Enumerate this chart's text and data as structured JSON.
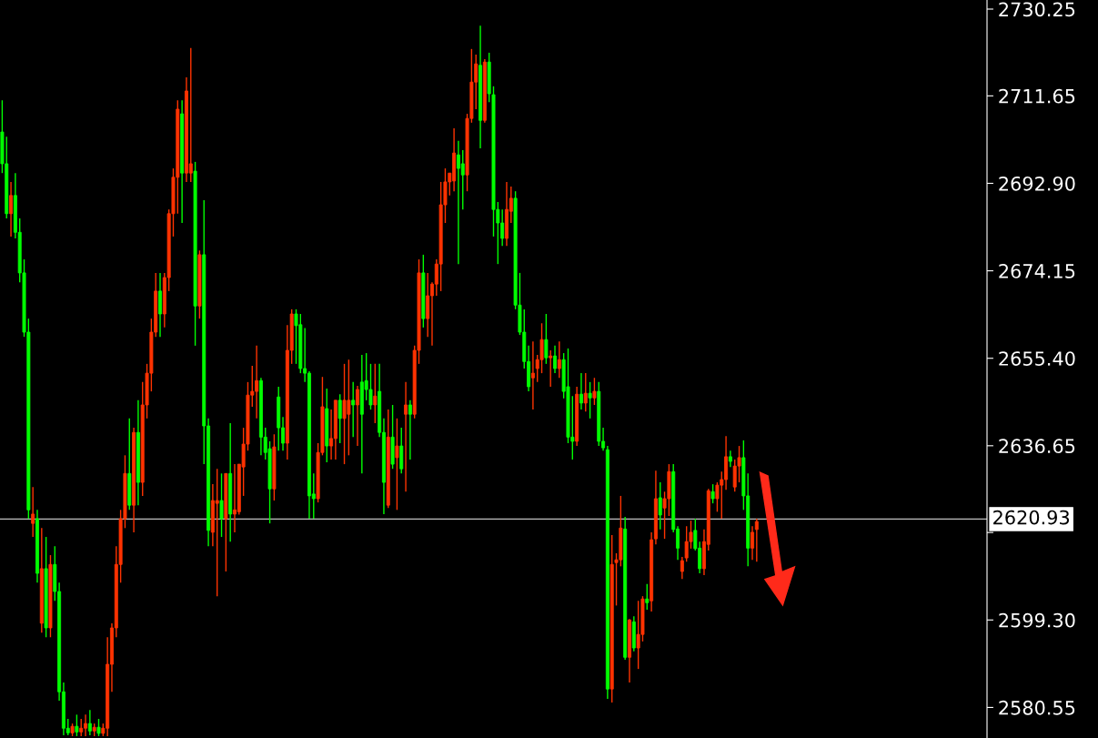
{
  "chart_data": {
    "type": "candlestick",
    "categories": [
      null,
      null,
      null,
      null,
      null,
      null,
      null,
      null,
      null,
      null,
      null,
      null,
      null,
      null,
      null,
      null,
      null,
      null,
      null,
      null,
      null,
      null,
      null,
      null,
      null,
      null,
      null,
      null,
      null,
      null,
      null,
      null,
      null,
      null,
      null,
      null,
      null,
      null,
      null,
      null,
      null,
      null,
      null,
      null,
      null,
      null,
      null,
      null,
      null,
      null,
      null,
      null,
      null,
      null,
      null,
      null,
      null,
      null,
      null,
      null,
      null,
      null,
      null,
      null,
      null,
      null,
      null,
      null,
      null,
      null,
      null,
      null,
      null,
      null,
      null,
      null,
      null,
      null,
      null,
      null,
      null,
      null,
      null,
      null,
      null,
      null,
      null,
      null,
      null,
      null,
      null,
      null,
      null,
      null,
      null,
      null,
      null,
      null,
      null,
      null,
      null,
      null,
      null,
      null,
      null,
      null,
      null,
      null,
      null,
      null,
      null,
      null,
      null,
      null,
      null,
      null,
      null,
      null,
      null,
      null,
      null,
      null,
      null,
      null,
      null,
      null,
      null,
      null,
      null,
      null,
      null,
      null,
      null,
      null,
      null,
      null,
      null,
      null,
      null,
      null,
      null,
      null,
      null,
      null,
      null,
      null,
      null,
      null,
      null,
      null,
      null,
      null,
      null,
      null,
      null,
      null,
      null,
      null,
      null,
      null,
      null,
      null,
      null,
      null,
      null,
      null,
      null,
      null,
      null,
      null,
      null,
      null,
      null,
      null,
      null,
      null,
      null,
      null,
      null,
      null,
      null,
      null,
      null,
      null,
      null,
      null,
      null,
      null,
      null,
      null,
      null,
      null,
      null,
      null,
      null,
      null,
      null,
      null,
      null,
      null,
      null,
      null,
      null,
      null,
      null,
      null,
      null,
      null,
      null,
      null,
      null,
      null,
      null,
      null,
      null,
      null,
      null,
      null,
      null,
      null,
      null,
      null,
      null,
      null,
      null
    ],
    "ohlc": [
      [
        2703.9,
        2710.7,
        2695.1,
        2697.1
      ],
      [
        2697.1,
        2702.9,
        2685.4,
        2686.4
      ],
      [
        2686.4,
        2693.2,
        2681.5,
        2690.3
      ],
      [
        2690.3,
        2695.1,
        2681.1,
        2682.4
      ],
      [
        2682.4,
        2685.4,
        2671.7,
        2673.7
      ],
      [
        2673.7,
        2676.6,
        2660.0,
        2661.0
      ],
      [
        2661.0,
        2663.9,
        2621.0,
        2622.9
      ],
      [
        2620.0,
        2627.8,
        2617.1,
        2622.0
      ],
      [
        2621.0,
        2622.9,
        2607.3,
        2609.3
      ],
      [
        2598.6,
        2619.0,
        2596.6,
        2610.3
      ],
      [
        2610.3,
        2617.1,
        2595.6,
        2597.6
      ],
      [
        2597.6,
        2613.2,
        2595.6,
        2611.2
      ],
      [
        2611.2,
        2615.1,
        2603.4,
        2605.4
      ],
      [
        2605.4,
        2607.3,
        2582.0,
        2583.9
      ],
      [
        2583.9,
        2585.9,
        2574.6,
        2576.1
      ],
      [
        2576.1,
        2578.1,
        2574.6,
        2575.1
      ],
      [
        2575.1,
        2577.1,
        2574.4,
        2576.5
      ],
      [
        2576.5,
        2579.0,
        2574.4,
        2575.3
      ],
      [
        2575.3,
        2578.1,
        2574.4,
        2576.1
      ],
      [
        2576.1,
        2579.0,
        2574.4,
        2577.1
      ],
      [
        2577.1,
        2580.0,
        2574.6,
        2575.5
      ],
      [
        2575.5,
        2577.1,
        2574.4,
        2576.3
      ],
      [
        2576.3,
        2578.1,
        2574.4,
        2575.0
      ],
      [
        2575.0,
        2577.1,
        2574.4,
        2576.1
      ],
      [
        2576.1,
        2595.6,
        2574.4,
        2589.8
      ],
      [
        2589.8,
        2598.6,
        2583.9,
        2597.6
      ],
      [
        2597.6,
        2615.1,
        2595.6,
        2611.2
      ],
      [
        2611.2,
        2622.9,
        2607.3,
        2621.0
      ],
      [
        2621.0,
        2634.6,
        2619.0,
        2630.7
      ],
      [
        2630.7,
        2642.5,
        2622.9,
        2623.9
      ],
      [
        2623.9,
        2640.5,
        2618.1,
        2639.5
      ],
      [
        2639.5,
        2646.4,
        2623.9,
        2628.8
      ],
      [
        2628.8,
        2650.3,
        2625.9,
        2645.4
      ],
      [
        2645.4,
        2654.2,
        2642.5,
        2652.2
      ],
      [
        2652.2,
        2663.9,
        2648.3,
        2661.0
      ],
      [
        2661.0,
        2673.7,
        2660.0,
        2669.8
      ],
      [
        2669.8,
        2673.7,
        2660.0,
        2664.9
      ],
      [
        2664.9,
        2673.7,
        2662.0,
        2672.7
      ],
      [
        2672.7,
        2687.3,
        2669.8,
        2686.4
      ],
      [
        2686.4,
        2696.1,
        2681.5,
        2694.2
      ],
      [
        2694.2,
        2710.7,
        2686.4,
        2708.8
      ],
      [
        2707.8,
        2710.7,
        2684.4,
        2695.1
      ],
      [
        2695.1,
        2715.6,
        2693.2,
        2712.7
      ],
      [
        2695.1,
        2721.9,
        2693.2,
        2697.1
      ],
      [
        2695.5,
        2697.5,
        2658.1,
        2666.6
      ],
      [
        2666.6,
        2678.5,
        2663.9,
        2677.6
      ],
      [
        2677.6,
        2689.3,
        2632.7,
        2640.9
      ],
      [
        2640.9,
        2642.5,
        2615.1,
        2618.5
      ],
      [
        2618.1,
        2628.4,
        2615.1,
        2624.9
      ],
      [
        2624.3,
        2631.7,
        2604.4,
        2624.9
      ],
      [
        2624.9,
        2630.7,
        2617.1,
        2621.0
      ],
      [
        2621.0,
        2630.7,
        2609.7,
        2630.7
      ],
      [
        2630.7,
        2641.5,
        2616.1,
        2622.0
      ],
      [
        2622.0,
        2632.7,
        2618.1,
        2622.9
      ],
      [
        2622.5,
        2632.7,
        2621.9,
        2632.7
      ],
      [
        2632.1,
        2640.5,
        2625.9,
        2637.0
      ],
      [
        2637.0,
        2650.3,
        2635.6,
        2647.5
      ],
      [
        2647.5,
        2653.8,
        2645.0,
        2648.3
      ],
      [
        2648.3,
        2658.1,
        2642.5,
        2650.6
      ],
      [
        2650.6,
        2651.2,
        2634.6,
        2638.5
      ],
      [
        2638.5,
        2640.5,
        2633.7,
        2635.2
      ],
      [
        2636.0,
        2637.6,
        2620.0,
        2627.4
      ],
      [
        2627.4,
        2639.1,
        2624.9,
        2636.4
      ],
      [
        2647.1,
        2649.3,
        2635.6,
        2640.5
      ],
      [
        2640.5,
        2642.8,
        2635.6,
        2637.2
      ],
      [
        2637.2,
        2662.5,
        2633.7,
        2657.1
      ],
      [
        2657.1,
        2665.9,
        2654.2,
        2664.9
      ],
      [
        2664.9,
        2665.9,
        2654.2,
        2662.4
      ],
      [
        2662.6,
        2664.9,
        2652.2,
        2653.2
      ],
      [
        2653.2,
        2661.9,
        2650.3,
        2652.2
      ],
      [
        2652.2,
        2652.6,
        2621.0,
        2625.9
      ],
      [
        2626.3,
        2630.7,
        2621.0,
        2625.3
      ],
      [
        2625.3,
        2637.2,
        2624.5,
        2635.2
      ],
      [
        2635.2,
        2651.4,
        2634.6,
        2645.0
      ],
      [
        2644.6,
        2648.9,
        2633.1,
        2636.6
      ],
      [
        2636.6,
        2644.4,
        2633.7,
        2638.2
      ],
      [
        2638.2,
        2646.4,
        2633.7,
        2646.4
      ],
      [
        2646.4,
        2647.7,
        2637.2,
        2642.5
      ],
      [
        2642.5,
        2654.2,
        2632.7,
        2646.4
      ],
      [
        2643.4,
        2655.1,
        2634.6,
        2646.4
      ],
      [
        2646.4,
        2650.3,
        2638.5,
        2645.4
      ],
      [
        2645.4,
        2649.5,
        2636.6,
        2648.7
      ],
      [
        2650.3,
        2656.1,
        2630.7,
        2643.4
      ],
      [
        2650.6,
        2656.5,
        2646.4,
        2648.7
      ],
      [
        2648.7,
        2654.2,
        2644.4,
        2645.4
      ],
      [
        2645.4,
        2654.2,
        2641.5,
        2647.3
      ],
      [
        2648.3,
        2654.2,
        2638.5,
        2639.5
      ],
      [
        2639.5,
        2642.5,
        2622.0,
        2628.8
      ],
      [
        2623.9,
        2644.4,
        2623.3,
        2638.5
      ],
      [
        2638.5,
        2645.4,
        2631.7,
        2632.7
      ],
      [
        2634.1,
        2642.5,
        2622.9,
        2636.6
      ],
      [
        2636.6,
        2640.5,
        2630.7,
        2631.7
      ],
      [
        2643.4,
        2650.3,
        2626.8,
        2645.4
      ],
      [
        2645.4,
        2646.4,
        2633.7,
        2643.4
      ],
      [
        2643.4,
        2658.1,
        2642.5,
        2657.1
      ],
      [
        2657.1,
        2676.6,
        2654.2,
        2673.7
      ],
      [
        2673.7,
        2677.6,
        2662.0,
        2663.9
      ],
      [
        2663.9,
        2673.7,
        2660.0,
        2668.8
      ],
      [
        2668.8,
        2671.7,
        2658.1,
        2671.3
      ],
      [
        2671.3,
        2676.6,
        2668.8,
        2675.6
      ],
      [
        2675.6,
        2693.2,
        2669.8,
        2688.3
      ],
      [
        2688.3,
        2696.1,
        2684.4,
        2693.2
      ],
      [
        2693.2,
        2695.1,
        2690.3,
        2695.1
      ],
      [
        2693.4,
        2704.7,
        2691.2,
        2699.4
      ],
      [
        2699.0,
        2702.0,
        2675.6,
        2696.1
      ],
      [
        2697.1,
        2700.0,
        2687.3,
        2694.7
      ],
      [
        2694.7,
        2707.8,
        2691.2,
        2706.8
      ],
      [
        2706.8,
        2721.7,
        2705.9,
        2714.6
      ],
      [
        2714.6,
        2720.5,
        2708.8,
        2718.5
      ],
      [
        2718.2,
        2726.7,
        2700.4,
        2706.4
      ],
      [
        2706.4,
        2719.5,
        2705.9,
        2718.9
      ],
      [
        2718.9,
        2720.9,
        2710.3,
        2712.1
      ],
      [
        2711.9,
        2713.7,
        2681.5,
        2687.3
      ],
      [
        2687.3,
        2688.9,
        2675.6,
        2684.4
      ],
      [
        2684.4,
        2687.3,
        2679.5,
        2681.1
      ],
      [
        2681.1,
        2693.2,
        2679.5,
        2687.3
      ],
      [
        2686.9,
        2692.2,
        2684.4,
        2689.7
      ],
      [
        2689.7,
        2691.2,
        2665.9,
        2666.8
      ],
      [
        2666.8,
        2673.7,
        2660.4,
        2661.0
      ],
      [
        2661.0,
        2665.9,
        2653.2,
        2654.7
      ],
      [
        2654.7,
        2658.1,
        2648.3,
        2649.3
      ],
      [
        2651.2,
        2659.0,
        2644.4,
        2652.2
      ],
      [
        2653.2,
        2656.1,
        2650.3,
        2655.1
      ],
      [
        2655.1,
        2662.9,
        2652.2,
        2659.4
      ],
      [
        2659.4,
        2664.9,
        2654.2,
        2655.5
      ],
      [
        2655.5,
        2657.1,
        2649.3,
        2655.9
      ],
      [
        2655.9,
        2658.1,
        2652.2,
        2653.2
      ],
      [
        2653.2,
        2659.0,
        2651.2,
        2655.1
      ],
      [
        2655.1,
        2656.5,
        2646.8,
        2648.3
      ],
      [
        2649.3,
        2657.5,
        2637.2,
        2638.5
      ],
      [
        2638.5,
        2647.3,
        2633.7,
        2637.6
      ],
      [
        2637.6,
        2649.3,
        2636.6,
        2647.7
      ],
      [
        2647.7,
        2652.2,
        2644.4,
        2645.8
      ],
      [
        2645.8,
        2652.2,
        2644.0,
        2647.9
      ],
      [
        2647.9,
        2650.3,
        2642.5,
        2646.9
      ],
      [
        2646.9,
        2651.2,
        2645.4,
        2648.3
      ],
      [
        2648.3,
        2650.3,
        2636.6,
        2637.6
      ],
      [
        2637.6,
        2640.5,
        2635.6,
        2636.2
      ],
      [
        2635.8,
        2636.6,
        2582.4,
        2584.5
      ],
      [
        2584.5,
        2617.5,
        2581.6,
        2611.2
      ],
      [
        2611.6,
        2613.6,
        2602.4,
        2612.2
      ],
      [
        2612.2,
        2625.9,
        2610.8,
        2619.0
      ],
      [
        2618.8,
        2621.4,
        2590.8,
        2591.3
      ],
      [
        2591.3,
        2599.5,
        2585.9,
        2599.3
      ],
      [
        2598.9,
        2600.1,
        2592.6,
        2593.3
      ],
      [
        2593.3,
        2603.4,
        2588.8,
        2596.2
      ],
      [
        2596.2,
        2604.4,
        2594.7,
        2603.8
      ],
      [
        2603.8,
        2607.0,
        2601.5,
        2603.0
      ],
      [
        2603.4,
        2618.1,
        2601.1,
        2616.5
      ],
      [
        2616.7,
        2631.3,
        2615.5,
        2625.3
      ],
      [
        2625.5,
        2628.8,
        2618.7,
        2621.8
      ],
      [
        2623.3,
        2626.8,
        2616.7,
        2625.3
      ],
      [
        2625.3,
        2632.7,
        2621.6,
        2631.1
      ],
      [
        2631.1,
        2632.7,
        2618.1,
        2618.7
      ],
      [
        2618.8,
        2619.4,
        2612.2,
        2614.7
      ],
      [
        2609.7,
        2612.8,
        2608.1,
        2612.0
      ],
      [
        2612.6,
        2619.4,
        2611.8,
        2616.1
      ],
      [
        2616.1,
        2620.6,
        2614.6,
        2618.1
      ],
      [
        2618.5,
        2621.0,
        2614.2,
        2614.6
      ],
      [
        2614.7,
        2616.1,
        2609.3,
        2610.3
      ],
      [
        2610.3,
        2618.7,
        2608.9,
        2616.1
      ],
      [
        2615.5,
        2627.4,
        2614.2,
        2627.0
      ],
      [
        2626.8,
        2628.4,
        2624.3,
        2625.3
      ],
      [
        2625.3,
        2628.8,
        2622.5,
        2628.2
      ],
      [
        2628.2,
        2631.1,
        2621.0,
        2629.4
      ],
      [
        2629.4,
        2638.7,
        2627.2,
        2634.3
      ],
      [
        2634.3,
        2635.6,
        2632.1,
        2633.3
      ],
      [
        2627.8,
        2633.7,
        2626.8,
        2632.3
      ],
      [
        2632.3,
        2636.6,
        2628.8,
        2634.1
      ],
      [
        2634.1,
        2637.8,
        2622.9,
        2625.9
      ],
      [
        2625.9,
        2630.7,
        2610.8,
        2614.7
      ],
      [
        2614.7,
        2619.4,
        2612.2,
        2618.1
      ],
      [
        2618.7,
        2621.0,
        2611.8,
        2620.4
      ],
      null,
      null,
      null,
      null,
      null,
      null,
      null,
      null,
      null,
      null,
      null,
      null,
      null,
      null,
      null,
      null,
      null,
      null,
      null,
      null,
      null,
      null,
      null,
      null,
      null,
      null,
      null,
      null,
      null,
      null,
      null,
      null,
      null,
      null,
      null,
      null,
      null,
      null,
      null,
      null,
      null,
      null,
      null,
      null,
      null,
      null,
      null,
      null,
      null,
      null,
      null,
      null
    ],
    "colors": [
      "#00ff00",
      "#00ff00",
      "#ff3300",
      "#00ff00",
      "#00ff00",
      "#00ff00",
      "#00ff00",
      "#ff3300",
      "#00ff00",
      "#ff3300",
      "#00ff00",
      "#ff3300",
      "#00ff00",
      "#00ff00",
      "#00ff00",
      "#00ff00",
      "#ff3300",
      "#00ff00",
      "#ff3300",
      "#ff3300",
      "#00ff00",
      "#ff3300",
      "#00ff00",
      "#ff3300",
      "#ff3300",
      "#ff3300",
      "#ff3300",
      "#ff3300",
      "#ff3300",
      "#00ff00",
      "#ff3300",
      "#00ff00",
      "#ff3300",
      "#ff3300",
      "#ff3300",
      "#ff3300",
      "#00ff00",
      "#ff3300",
      "#ff3300",
      "#ff3300",
      "#ff3300",
      "#00ff00",
      "#ff3300",
      "#ff3300",
      "#00ff00",
      "#ff3300",
      "#00ff00",
      "#00ff00",
      "#ff3300",
      "#ff3300",
      "#00ff00",
      "#ff3300",
      "#00ff00",
      "#ff3300",
      "#ff3300",
      "#ff3300",
      "#ff3300",
      "#ff3300",
      "#ff3300",
      "#00ff00",
      "#00ff00",
      "#00ff00",
      "#ff3300",
      "#00ff00",
      "#00ff00",
      "#ff3300",
      "#ff3300",
      "#00ff00",
      "#00ff00",
      "#00ff00",
      "#00ff00",
      "#00ff00",
      "#ff3300",
      "#ff3300",
      "#00ff00",
      "#ff3300",
      "#ff3300",
      "#00ff00",
      "#ff3300",
      "#ff3300",
      "#00ff00",
      "#ff3300",
      "#00ff00",
      "#00ff00",
      "#00ff00",
      "#ff3300",
      "#00ff00",
      "#00ff00",
      "#ff3300",
      "#00ff00",
      "#ff3300",
      "#00ff00",
      "#ff3300",
      "#00ff00",
      "#ff3300",
      "#ff3300",
      "#00ff00",
      "#ff3300",
      "#ff3300",
      "#ff3300",
      "#ff3300",
      "#ff3300",
      "#ff3300",
      "#ff3300",
      "#00ff00",
      "#00ff00",
      "#ff3300",
      "#ff3300",
      "#ff3300",
      "#00ff00",
      "#ff3300",
      "#00ff00",
      "#00ff00",
      "#00ff00",
      "#00ff00",
      "#ff3300",
      "#ff3300",
      "#00ff00",
      "#00ff00",
      "#00ff00",
      "#00ff00",
      "#ff3300",
      "#ff3300",
      "#ff3300",
      "#00ff00",
      "#ff3300",
      "#00ff00",
      "#ff3300",
      "#00ff00",
      "#00ff00",
      "#00ff00",
      "#ff3300",
      "#00ff00",
      "#ff3300",
      "#00ff00",
      "#ff3300",
      "#00ff00",
      "#00ff00",
      "#00ff00",
      "#ff3300",
      "#ff3300",
      "#ff3300",
      "#00ff00",
      "#ff3300",
      "#00ff00",
      "#ff3300",
      "#ff3300",
      "#00ff00",
      "#ff3300",
      "#ff3300",
      "#00ff00",
      "#ff3300",
      "#ff3300",
      "#00ff00",
      "#00ff00",
      "#ff3300",
      "#ff3300",
      "#ff3300",
      "#00ff00",
      "#00ff00",
      "#ff3300",
      "#ff3300",
      "#00ff00",
      "#ff3300",
      "#ff3300",
      "#ff3300",
      "#00ff00",
      "#ff3300",
      "#ff3300",
      "#00ff00",
      "#00ff00",
      "#ff3300",
      "#ff3300",
      null,
      null,
      null,
      null,
      null,
      null,
      null,
      null,
      null,
      null,
      null,
      null,
      null,
      null,
      null,
      null,
      null,
      null,
      null,
      null,
      null,
      null,
      null,
      null,
      null,
      null,
      null,
      null,
      null,
      null,
      null,
      null,
      null,
      null,
      null,
      null,
      null,
      null,
      null,
      null,
      null,
      null,
      null,
      null,
      null,
      null,
      null,
      null,
      null,
      null,
      null,
      null
    ],
    "ylim": [
      2574.0,
      2732.2
    ],
    "yticks": [
      2580.55,
      {
        "value": 2599.3,
        "label": "2599.30"
      },
      {
        "value": 2618.05,
        "label": null
      },
      2636.65,
      {
        "value": 2655.4,
        "label": "2655.40"
      },
      2674.15,
      {
        "value": 2692.9,
        "label": "2692.90"
      },
      2711.65,
      2730.25
    ],
    "tick_labels": "y",
    "grid": false,
    "ref_lines": [
      {
        "axis": "y",
        "value": 2620.93,
        "label": "2620.93",
        "color": "#c0c0c0"
      }
    ]
  }
}
